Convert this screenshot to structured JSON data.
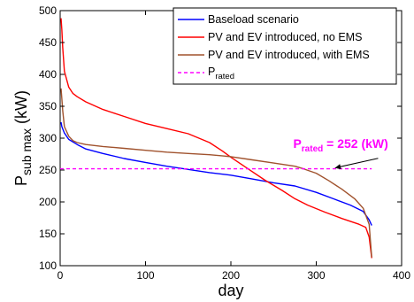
{
  "chart_data": {
    "type": "line",
    "xlabel": "day",
    "ylabel_main": "P",
    "ylabel_sub": "sub max",
    "ylabel_unit": " (kW)",
    "xlim": [
      0,
      400
    ],
    "ylim": [
      100,
      500
    ],
    "xticks": [
      "0",
      "100",
      "200",
      "300",
      "400"
    ],
    "yticks": [
      "100",
      "150",
      "200",
      "250",
      "300",
      "350",
      "400",
      "450",
      "500"
    ],
    "grid": false,
    "legend_position": "top-right",
    "colors": {
      "baseload": "#0000ff",
      "pv_no_ems": "#ff0000",
      "pv_with_ems": "#a0522d",
      "rated": "#ff00ff"
    },
    "series": [
      {
        "id": "baseload",
        "name": "Baseload scenario",
        "x": [
          1,
          2,
          5,
          10,
          20,
          30,
          50,
          75,
          100,
          125,
          150,
          175,
          200,
          225,
          250,
          275,
          300,
          320,
          340,
          355,
          362,
          365
        ],
        "y": [
          325,
          318,
          308,
          298,
          290,
          283,
          276,
          268,
          262,
          256,
          251,
          246,
          242,
          236,
          230,
          225,
          215,
          205,
          195,
          185,
          172,
          163
        ]
      },
      {
        "id": "pv_no_ems",
        "name": "PV and EV introduced, no EMS",
        "x": [
          1,
          2,
          3,
          5,
          10,
          15,
          20,
          30,
          50,
          75,
          100,
          125,
          150,
          175,
          190,
          200,
          220,
          240,
          260,
          275,
          290,
          310,
          330,
          350,
          358,
          362,
          365
        ],
        "y": [
          488,
          470,
          442,
          405,
          380,
          370,
          365,
          357,
          345,
          334,
          323,
          315,
          307,
          293,
          280,
          270,
          252,
          234,
          218,
          205,
          195,
          184,
          174,
          165,
          160,
          145,
          112
        ]
      },
      {
        "id": "pv_with_ems",
        "name": "PV and EV introduced, with EMS",
        "x": [
          1,
          2,
          3,
          5,
          10,
          15,
          20,
          30,
          50,
          75,
          100,
          125,
          150,
          175,
          200,
          225,
          250,
          275,
          285,
          300,
          315,
          330,
          345,
          355,
          362,
          365
        ],
        "y": [
          378,
          362,
          343,
          318,
          303,
          296,
          293,
          290,
          287,
          284,
          281,
          278,
          276,
          274,
          271,
          266,
          261,
          256,
          252,
          245,
          233,
          220,
          205,
          190,
          165,
          113
        ]
      },
      {
        "id": "rated",
        "name": "P",
        "name_sub": "rated",
        "x": [
          0,
          365
        ],
        "y": [
          252,
          252
        ]
      }
    ],
    "annotation": {
      "text_main": "P",
      "text_sub": "rated",
      "text_rest": " = 252 (kW)",
      "x": 273,
      "y": 285,
      "arrow_to_x": 322,
      "arrow_to_y": 252
    }
  }
}
